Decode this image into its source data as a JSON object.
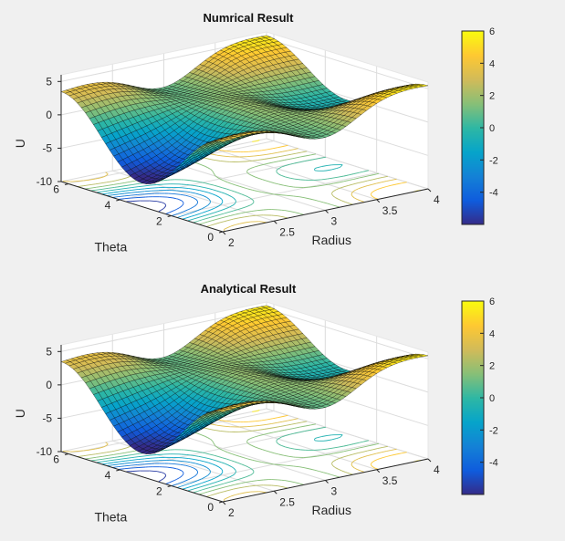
{
  "chart_data": [
    {
      "type": "surface",
      "title": "Numrical Result",
      "xlabel": "Radius",
      "ylabel": "Theta",
      "zlabel": "U",
      "x_ticks": [
        "2",
        "2.5",
        "3",
        "3.5",
        "4"
      ],
      "y_ticks": [
        "0",
        "2",
        "4",
        "6"
      ],
      "z_ticks": [
        "-10",
        "-5",
        "0",
        "5"
      ],
      "xlim": [
        2,
        4
      ],
      "ylim": [
        0,
        6.2832
      ],
      "zlim": [
        -10,
        6
      ],
      "grid": true,
      "colormap": "parula",
      "colorbar": {
        "ticks": [
          "-4",
          "-2",
          "0",
          "2",
          "4",
          "6"
        ],
        "range": [
          -6,
          6
        ],
        "placement": "right"
      },
      "contour_projection": true
    },
    {
      "type": "surface",
      "title": "Analytical Result",
      "xlabel": "Radius",
      "ylabel": "Theta",
      "zlabel": "U",
      "x_ticks": [
        "2",
        "2.5",
        "3",
        "3.5",
        "4"
      ],
      "y_ticks": [
        "0",
        "2",
        "4",
        "6"
      ],
      "z_ticks": [
        "-10",
        "-5",
        "0",
        "5"
      ],
      "xlim": [
        2,
        4
      ],
      "ylim": [
        0,
        6.2832
      ],
      "zlim": [
        -10,
        6
      ],
      "grid": true,
      "colormap": "parula",
      "colorbar": {
        "ticks": [
          "-4",
          "-2",
          "0",
          "2",
          "4",
          "6"
        ],
        "range": [
          -6,
          6
        ],
        "placement": "right"
      },
      "contour_projection": true
    }
  ],
  "colors": {
    "background": "#f0f0f0",
    "axes_face": "#ffffff",
    "mesh_edge": "#000000",
    "parula": [
      "#352a87",
      "#0f5cdd",
      "#1481d6",
      "#06a4ca",
      "#2eb7a4",
      "#87bf77",
      "#d1bb59",
      "#fec832",
      "#f9fb0e"
    ]
  }
}
